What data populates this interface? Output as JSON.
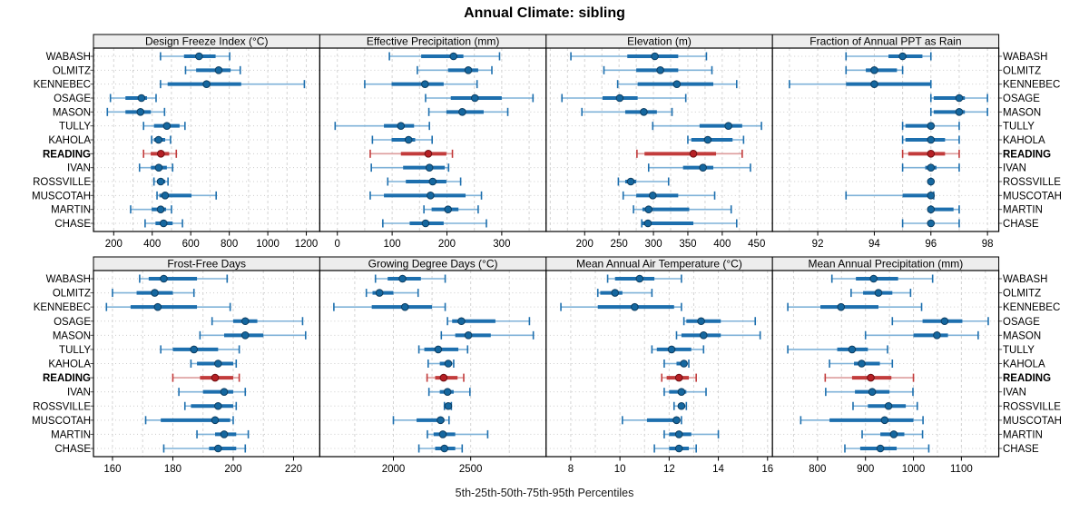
{
  "title": "Annual Climate: sibling",
  "caption": "5th-25th-50th-75th-95th Percentiles",
  "percentiles": [
    "5th",
    "25th",
    "50th",
    "75th",
    "95th"
  ],
  "sites": [
    "WABASH",
    "OLMITZ",
    "KENNEBEC",
    "OSAGE",
    "MASON",
    "TULLY",
    "KAHOLA",
    "READING",
    "IVAN",
    "ROSSVILLE",
    "MUSCOTAH",
    "MARTIN",
    "CHASE"
  ],
  "highlight_site": "READING",
  "colors": {
    "blue_main": "#1d6fae",
    "blue_tail": "#7fb2d8",
    "blue_dot": "#15679f",
    "blue_dot_edge": "#0d3d61",
    "red_main": "#c23b3b",
    "red_tail": "#dd9d9d",
    "red_dot": "#b51f24",
    "red_dot_edge": "#6e0f12",
    "grid_v": "#d4d4d4",
    "grid_h": "#cccccc",
    "strip_bg": "#ededed",
    "border": "#000000",
    "label": "#000000"
  },
  "chart_data": {
    "type": "dotplot-percentile",
    "note": "Each row shows 5th-25th-50th-75th-95th percentiles per site; READING highlighted in red",
    "rows": [
      {
        "panels": [
          {
            "title": "Design Freeze Index (°C)",
            "xlim": [
              95,
              1270
            ],
            "tick_values": [
              200,
              400,
              600,
              800,
              1000,
              1200
            ],
            "tick_labels": [
              "200",
              "400",
              "600",
              "800",
              "1000",
              "1200"
            ],
            "grid_from": 100,
            "grid_step": 100,
            "series": [
              [
                443,
                565,
                643,
                729,
                802
              ],
              [
                573,
                628,
                745,
                807,
                857
              ],
              [
                443,
                480,
                682,
                862,
                1190
              ],
              [
                183,
                261,
                344,
                373,
                420
              ],
              [
                167,
                261,
                339,
                393,
                464
              ],
              [
                355,
                409,
                476,
                542,
                570
              ],
              [
                397,
                409,
                433,
                467,
                495
              ],
              [
                355,
                392,
                445,
                488,
                525
              ],
              [
                334,
                393,
                434,
                476,
                506
              ],
              [
                409,
                425,
                444,
                468,
                482
              ],
              [
                425,
                437,
                467,
                604,
                732
              ],
              [
                288,
                397,
                444,
                472,
                500
              ],
              [
                363,
                417,
                459,
                506,
                557
              ]
            ]
          },
          {
            "title": "Effective Precipitation (mm)",
            "xlim": [
              -32,
              381
            ],
            "tick_values": [
              0,
              100,
              200,
              300
            ],
            "tick_labels": [
              "0",
              "100",
              "200",
              "300"
            ],
            "grid_from": 0,
            "grid_step": 50,
            "series": [
              [
                95,
                153,
                212,
                230,
                296
              ],
              [
                146,
                202,
                239,
                257,
                282
              ],
              [
                50,
                99,
                160,
                194,
                255
              ],
              [
                161,
                207,
                251,
                300,
                357
              ],
              [
                167,
                199,
                228,
                267,
                311
              ],
              [
                -4,
                85,
                116,
                140,
                168
              ],
              [
                64,
                99,
                130,
                142,
                173
              ],
              [
                60,
                116,
                166,
                199,
                210
              ],
              [
                62,
                120,
                168,
                196,
                203
              ],
              [
                92,
                125,
                174,
                199,
                225
              ],
              [
                60,
                85,
                170,
                234,
                263
              ],
              [
                158,
                172,
                202,
                221,
                257
              ],
              [
                83,
                132,
                161,
                194,
                272
              ]
            ]
          },
          {
            "title": "Elevation (m)",
            "xlim": [
              144,
              473
            ],
            "tick_values": [
              200,
              250,
              300,
              350,
              400,
              450
            ],
            "tick_labels": [
              "200",
              "250",
              "300",
              "350",
              "400",
              "450"
            ],
            "grid_from": 150,
            "grid_step": 25,
            "series": [
              [
                180,
                262,
                302,
                336,
                377
              ],
              [
                228,
                275,
                310,
                336,
                385
              ],
              [
                248,
                277,
                334,
                387,
                421
              ],
              [
                167,
                226,
                251,
                277,
                347
              ],
              [
                196,
                259,
                286,
                305,
                327
              ],
              [
                299,
                367,
                409,
                429,
                457
              ],
              [
                350,
                355,
                379,
                415,
                431
              ],
              [
                276,
                287,
                358,
                391,
                429
              ],
              [
                293,
                343,
                372,
                387,
                441
              ],
              [
                249,
                259,
                267,
                275,
                322
              ],
              [
                256,
                275,
                299,
                336,
                389
              ],
              [
                271,
                284,
                293,
                352,
                413
              ],
              [
                283,
                284,
                292,
                358,
                421
              ]
            ]
          },
          {
            "title": "Fraction of Annual PPT as Rain",
            "xlim": [
              90.4,
              98.4
            ],
            "tick_values": [
              92,
              94,
              96,
              98
            ],
            "tick_labels": [
              "92",
              "94",
              "96",
              "98"
            ],
            "grid_from": 91,
            "grid_step": 1,
            "series": [
              [
                93,
                94.5,
                95,
                95.7,
                96
              ],
              [
                93,
                93.7,
                94,
                94.8,
                95
              ],
              [
                91,
                93,
                94,
                96,
                96
              ],
              [
                96,
                96.1,
                97,
                97.2,
                98
              ],
              [
                96,
                96.1,
                97,
                97.2,
                98
              ],
              [
                95,
                95.1,
                96,
                96.1,
                97
              ],
              [
                95,
                95.1,
                96,
                96.5,
                97
              ],
              [
                95,
                95.2,
                96,
                96.5,
                97
              ],
              [
                95,
                95.8,
                96,
                96.2,
                97
              ],
              [
                96,
                96,
                96,
                96,
                96
              ],
              [
                93,
                95,
                96,
                96,
                96.1
              ],
              [
                96,
                96,
                96,
                96.8,
                97
              ],
              [
                95,
                95.9,
                96,
                96.1,
                97
              ]
            ]
          }
        ]
      },
      {
        "panels": [
          {
            "title": "Frost-Free Days",
            "xlim": [
              153.7,
              228.7
            ],
            "tick_values": [
              160,
              180,
              200,
              220
            ],
            "tick_labels": [
              "160",
              "180",
              "200",
              "220"
            ],
            "grid_from": 160,
            "grid_step": 10,
            "series": [
              [
                169,
                172,
                177,
                188,
                198
              ],
              [
                160,
                168,
                174,
                180,
                187
              ],
              [
                158,
                166,
                175,
                188,
                199
              ],
              [
                193,
                200,
                204,
                208,
                223
              ],
              [
                189,
                197,
                204,
                210,
                224
              ],
              [
                176,
                180,
                187,
                195,
                202
              ],
              [
                186,
                188,
                195,
                200,
                201
              ],
              [
                180,
                189,
                194,
                200,
                202
              ],
              [
                182,
                190,
                197,
                200,
                204
              ],
              [
                184,
                186,
                195,
                200,
                201
              ],
              [
                171,
                176,
                194,
                199,
                200
              ],
              [
                188,
                194,
                197,
                201,
                205
              ],
              [
                177,
                192,
                195,
                201,
                204
              ]
            ]
          },
          {
            "title": "Growing Degree Days (°C)",
            "xlim": [
              1524,
              2988
            ],
            "tick_values": [
              2000,
              2500
            ],
            "tick_labels": [
              "2000",
              "2500"
            ],
            "grid_from": 1750,
            "grid_step": 250,
            "series": [
              [
                1884,
                1963,
                2059,
                2178,
                2335
              ],
              [
                1825,
                1865,
                1910,
                2000,
                2160
              ],
              [
                1615,
                1860,
                2075,
                2250,
                2335
              ],
              [
                2350,
                2380,
                2440,
                2660,
                2880
              ],
              [
                2310,
                2400,
                2485,
                2630,
                2905
              ],
              [
                2165,
                2200,
                2290,
                2420,
                2480
              ],
              [
                2225,
                2300,
                2355,
                2380,
                2390
              ],
              [
                2218,
                2270,
                2325,
                2415,
                2455
              ],
              [
                2230,
                2300,
                2350,
                2390,
                2495
              ],
              [
                2330,
                2345,
                2355,
                2370,
                2375
              ],
              [
                2000,
                2150,
                2305,
                2330,
                2360
              ],
              [
                2220,
                2260,
                2320,
                2400,
                2610
              ],
              [
                2165,
                2270,
                2330,
                2400,
                2445
              ]
            ]
          },
          {
            "title": "Mean Annual Air Temperature (°C)",
            "xlim": [
              7.0,
              16.2
            ],
            "tick_values": [
              8,
              10,
              12,
              14,
              16
            ],
            "tick_labels": [
              "8",
              "10",
              "12",
              "14",
              "16"
            ],
            "grid_from": 7,
            "grid_step": 1,
            "series": [
              [
                9.5,
                9.8,
                10.8,
                11.4,
                12.5
              ],
              [
                9.1,
                9.2,
                9.8,
                10.1,
                11.3
              ],
              [
                7.6,
                9.1,
                10.6,
                12.2,
                12.5
              ],
              [
                12.6,
                12.7,
                13.3,
                14.1,
                15.5
              ],
              [
                12.3,
                12.5,
                13.4,
                14.1,
                15.7
              ],
              [
                11.3,
                11.5,
                12.1,
                12.9,
                13.4
              ],
              [
                11.8,
                12.3,
                12.6,
                12.7,
                12.8
              ],
              [
                11.7,
                11.9,
                12.4,
                12.8,
                13.1
              ],
              [
                11.8,
                12.0,
                12.5,
                12.7,
                13.5
              ],
              [
                12.2,
                12.4,
                12.5,
                12.6,
                12.7
              ],
              [
                10.1,
                11.1,
                12.3,
                12.4,
                12.5
              ],
              [
                11.8,
                12.0,
                12.4,
                12.9,
                14.0
              ],
              [
                11.4,
                12.0,
                12.4,
                12.8,
                13.1
              ]
            ]
          },
          {
            "title": "Mean Annual Precipitation (mm)",
            "xlim": [
              706,
              1178
            ],
            "tick_values": [
              800,
              900,
              1000,
              1100
            ],
            "tick_labels": [
              "800",
              "900",
              "1000",
              "1100"
            ],
            "grid_from": 750,
            "grid_step": 50,
            "series": [
              [
                830,
                880,
                917,
                968,
                1040
              ],
              [
                870,
                895,
                927,
                956,
                994
              ],
              [
                738,
                806,
                849,
                927,
                1017
              ],
              [
                956,
                1019,
                1065,
                1102,
                1156
              ],
              [
                900,
                1000,
                1049,
                1072,
                1135
              ],
              [
                738,
                841,
                872,
                905,
                946
              ],
              [
                825,
                876,
                892,
                930,
                956
              ],
              [
                816,
                872,
                911,
                954,
                1000
              ],
              [
                817,
                878,
                914,
                950,
                999
              ],
              [
                874,
                905,
                948,
                984,
                1008
              ],
              [
                765,
                825,
                940,
                1000,
                1020
              ],
              [
                893,
                931,
                959,
                981,
                1019
              ],
              [
                857,
                889,
                931,
                965,
                1032
              ]
            ]
          }
        ]
      }
    ]
  }
}
